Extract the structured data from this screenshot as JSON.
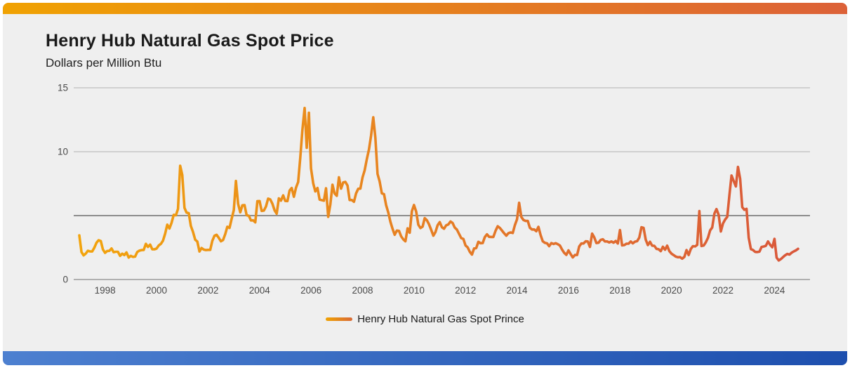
{
  "header": {
    "title": "Henry Hub Natural Gas Spot Price",
    "subtitle": "Dollars per Million Btu"
  },
  "legend": {
    "label": "Henry Hub Natural Gas Spot Prince"
  },
  "colors": {
    "background": "#efefef",
    "top_bar_gradient_from": "#f0a202",
    "top_bar_gradient_to": "#dc6138",
    "bottom_bar_gradient_from": "#4d80d0",
    "bottom_bar_gradient_to": "#1d4fae",
    "line_gradient_from": "#f2a40d",
    "line_gradient_to": "#d9573b",
    "gridline_light": "#b2b2b2",
    "gridline_mid": "#8c8c8c",
    "gridline_zero": "#9b9b9b",
    "tick_text": "#4a4a4a",
    "title_text": "#1a1a1a"
  },
  "chart_data": {
    "type": "line",
    "title": "Henry Hub Natural Gas Spot Price",
    "ylabel": "Dollars per Million Btu",
    "xlabel": "",
    "ylim": [
      0,
      15
    ],
    "grid": "horizontal",
    "legend_position": "bottom-center",
    "x_start_year": 1997,
    "frequency": "monthly",
    "y_ticks": [
      {
        "value": 0,
        "label": "0",
        "style": "zero"
      },
      {
        "value": 5,
        "label": "",
        "style": "emphasis"
      },
      {
        "value": 10,
        "label": "10",
        "style": "light"
      },
      {
        "value": 15,
        "label": "15",
        "style": "light"
      }
    ],
    "x_ticks": [
      {
        "year": 1998,
        "label": "1998"
      },
      {
        "year": 2000,
        "label": "2000"
      },
      {
        "year": 2002,
        "label": "2002"
      },
      {
        "year": 2004,
        "label": "2004"
      },
      {
        "year": 2006,
        "label": "2006"
      },
      {
        "year": 2008,
        "label": "2008"
      },
      {
        "year": 2010,
        "label": "2010"
      },
      {
        "year": 2012,
        "label": "2012"
      },
      {
        "year": 2014,
        "label": "2014"
      },
      {
        "year": 2016,
        "label": "2016"
      },
      {
        "year": 2018,
        "label": "2018"
      },
      {
        "year": 2020,
        "label": "2020"
      },
      {
        "year": 2022,
        "label": "2022"
      },
      {
        "year": 2024,
        "label": "2024"
      }
    ],
    "series": [
      {
        "name": "Henry Hub Natural Gas Spot Prince",
        "start": "1997-01",
        "values": [
          3.45,
          2.15,
          1.89,
          2.03,
          2.25,
          2.2,
          2.19,
          2.49,
          2.88,
          3.07,
          3.01,
          2.35,
          2.09,
          2.23,
          2.24,
          2.43,
          2.14,
          2.17,
          2.17,
          1.85,
          2.02,
          1.91,
          2.12,
          1.72,
          1.85,
          1.77,
          1.79,
          2.15,
          2.26,
          2.3,
          2.31,
          2.79,
          2.55,
          2.73,
          2.37,
          2.36,
          2.42,
          2.66,
          2.79,
          3.04,
          3.59,
          4.29,
          3.99,
          4.43,
          5.06,
          5.02,
          5.52,
          8.9,
          8.17,
          5.61,
          5.23,
          5.19,
          4.19,
          3.72,
          3.11,
          2.97,
          2.19,
          2.46,
          2.34,
          2.3,
          2.32,
          2.32,
          3.03,
          3.43,
          3.5,
          3.26,
          2.99,
          3.09,
          3.55,
          4.13,
          4.04,
          4.74,
          5.43,
          7.71,
          5.93,
          5.26,
          5.81,
          5.82,
          5.03,
          4.99,
          4.62,
          4.63,
          4.47,
          6.13,
          6.14,
          5.37,
          5.39,
          5.71,
          6.33,
          6.27,
          5.93,
          5.41,
          5.15,
          6.35,
          6.17,
          6.58,
          6.15,
          6.14,
          6.96,
          7.16,
          6.47,
          7.18,
          7.63,
          9.53,
          11.75,
          13.42,
          10.3,
          13.05,
          8.69,
          7.54,
          6.89,
          7.16,
          6.25,
          6.21,
          6.17,
          7.14,
          4.9,
          5.85,
          7.41,
          6.73,
          6.55,
          8.0,
          7.11,
          7.6,
          7.64,
          7.35,
          6.22,
          6.22,
          6.08,
          6.74,
          7.1,
          7.11,
          7.99,
          8.54,
          9.41,
          10.18,
          11.27,
          12.69,
          11.09,
          8.26,
          7.67,
          6.74,
          6.68,
          5.82,
          5.24,
          4.52,
          3.96,
          3.5,
          3.83,
          3.8,
          3.38,
          3.14,
          2.99,
          4.0,
          3.66,
          5.34,
          5.83,
          5.32,
          4.29,
          4.03,
          4.14,
          4.8,
          4.63,
          4.32,
          3.89,
          3.43,
          3.71,
          4.25,
          4.49,
          4.09,
          3.97,
          4.24,
          4.31,
          4.54,
          4.42,
          4.06,
          3.9,
          3.57,
          3.24,
          3.17,
          2.67,
          2.51,
          2.17,
          1.95,
          2.43,
          2.46,
          2.95,
          2.84,
          2.85,
          3.32,
          3.54,
          3.34,
          3.33,
          3.33,
          3.81,
          4.17,
          4.04,
          3.83,
          3.62,
          3.43,
          3.62,
          3.68,
          3.64,
          4.24,
          4.71,
          6.0,
          4.9,
          4.66,
          4.58,
          4.59,
          4.05,
          3.91,
          3.92,
          3.78,
          4.12,
          3.48,
          2.99,
          2.87,
          2.83,
          2.61,
          2.85,
          2.78,
          2.84,
          2.77,
          2.66,
          2.34,
          2.09,
          1.93,
          2.28,
          1.99,
          1.73,
          1.92,
          1.92,
          2.59,
          2.82,
          2.82,
          2.99,
          2.98,
          2.55,
          3.59,
          3.3,
          2.85,
          2.88,
          3.1,
          3.15,
          2.98,
          2.98,
          2.9,
          2.98,
          2.88,
          3.01,
          2.82,
          3.87,
          2.67,
          2.69,
          2.8,
          2.8,
          2.97,
          2.83,
          2.96,
          3.0,
          3.28,
          4.09,
          4.04,
          3.11,
          2.69,
          2.95,
          2.65,
          2.64,
          2.4,
          2.37,
          2.22,
          2.56,
          2.33,
          2.65,
          2.22,
          2.02,
          1.91,
          1.79,
          1.74,
          1.75,
          1.63,
          1.77,
          2.3,
          1.92,
          2.39,
          2.61,
          2.59,
          2.71,
          5.35,
          2.62,
          2.66,
          2.91,
          3.26,
          3.84,
          4.07,
          5.16,
          5.51,
          5.05,
          3.76,
          4.38,
          4.69,
          4.9,
          6.6,
          8.14,
          7.7,
          7.28,
          8.81,
          7.88,
          5.66,
          5.45,
          5.53,
          3.27,
          2.38,
          2.31,
          2.16,
          2.15,
          2.18,
          2.55,
          2.58,
          2.64,
          2.98,
          2.71,
          2.52,
          3.18,
          1.72,
          1.49,
          1.6,
          1.75,
          1.9,
          2.0,
          1.95,
          2.1,
          2.2,
          2.28,
          2.4
        ]
      }
    ]
  }
}
